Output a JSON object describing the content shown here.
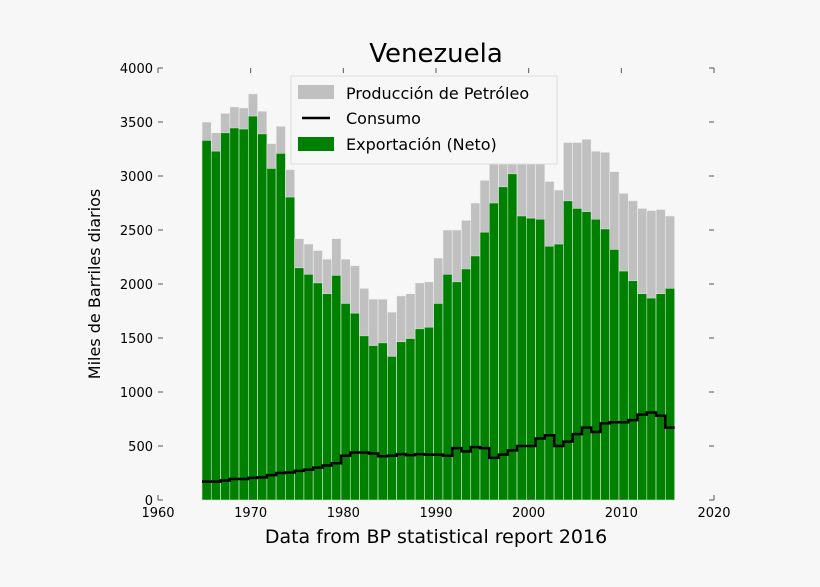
{
  "chart_data": {
    "type": "bar",
    "title": "Venezuela",
    "xlabel": "Data from BP statistical report 2016",
    "ylabel": "Miles de Barriles diarios",
    "xlim": [
      1960,
      2020
    ],
    "ylim": [
      0,
      4000
    ],
    "xticks": [
      1960,
      1970,
      1980,
      1990,
      2000,
      2010,
      2020
    ],
    "yticks": [
      0,
      500,
      1000,
      1500,
      2000,
      2500,
      3000,
      3500,
      4000
    ],
    "grid": false,
    "legend_placement": "top-center",
    "colors": {
      "production": "#c0c0c0",
      "consumption": "#000000",
      "export": "#008000",
      "background": "#f7f7f7"
    },
    "x": [
      1965,
      1966,
      1967,
      1968,
      1969,
      1970,
      1971,
      1972,
      1973,
      1974,
      1975,
      1976,
      1977,
      1978,
      1979,
      1980,
      1981,
      1982,
      1983,
      1984,
      1985,
      1986,
      1987,
      1988,
      1989,
      1990,
      1991,
      1992,
      1993,
      1994,
      1995,
      1996,
      1997,
      1998,
      1999,
      2000,
      2001,
      2002,
      2003,
      2004,
      2005,
      2006,
      2007,
      2008,
      2009,
      2010,
      2011,
      2012,
      2013,
      2014,
      2015
    ],
    "series": [
      {
        "name": "Producción de Petróleo",
        "type": "bar",
        "values": [
          3500,
          3400,
          3580,
          3640,
          3630,
          3760,
          3600,
          3300,
          3460,
          3060,
          2420,
          2370,
          2310,
          2230,
          2420,
          2230,
          2170,
          1960,
          1860,
          1860,
          1740,
          1890,
          1910,
          2010,
          2020,
          2240,
          2500,
          2500,
          2590,
          2750,
          2960,
          3140,
          3320,
          3480,
          3130,
          3110,
          3170,
          2950,
          2870,
          3310,
          3310,
          3340,
          3230,
          3220,
          3040,
          2840,
          2770,
          2700,
          2680,
          2690,
          2630
        ]
      },
      {
        "name": "Consumo",
        "type": "step-line",
        "values": [
          170,
          170,
          180,
          195,
          195,
          205,
          210,
          230,
          250,
          255,
          270,
          280,
          300,
          320,
          340,
          410,
          440,
          440,
          430,
          405,
          410,
          425,
          415,
          425,
          420,
          420,
          410,
          480,
          450,
          490,
          480,
          390,
          420,
          460,
          500,
          500,
          570,
          600,
          500,
          540,
          610,
          670,
          630,
          710,
          720,
          720,
          740,
          790,
          810,
          780,
          670
        ]
      },
      {
        "name": "Exportación (Neto)",
        "type": "bar",
        "values": [
          3330,
          3230,
          3400,
          3445,
          3435,
          3555,
          3390,
          3070,
          3210,
          2805,
          2150,
          2090,
          2010,
          1910,
          2080,
          1820,
          1730,
          1520,
          1430,
          1455,
          1330,
          1465,
          1495,
          1585,
          1600,
          1820,
          2090,
          2020,
          2140,
          2260,
          2480,
          2750,
          2900,
          3020,
          2630,
          2610,
          2600,
          2350,
          2370,
          2770,
          2700,
          2670,
          2600,
          2510,
          2320,
          2120,
          2030,
          1910,
          1870,
          1910,
          1960
        ]
      }
    ]
  }
}
